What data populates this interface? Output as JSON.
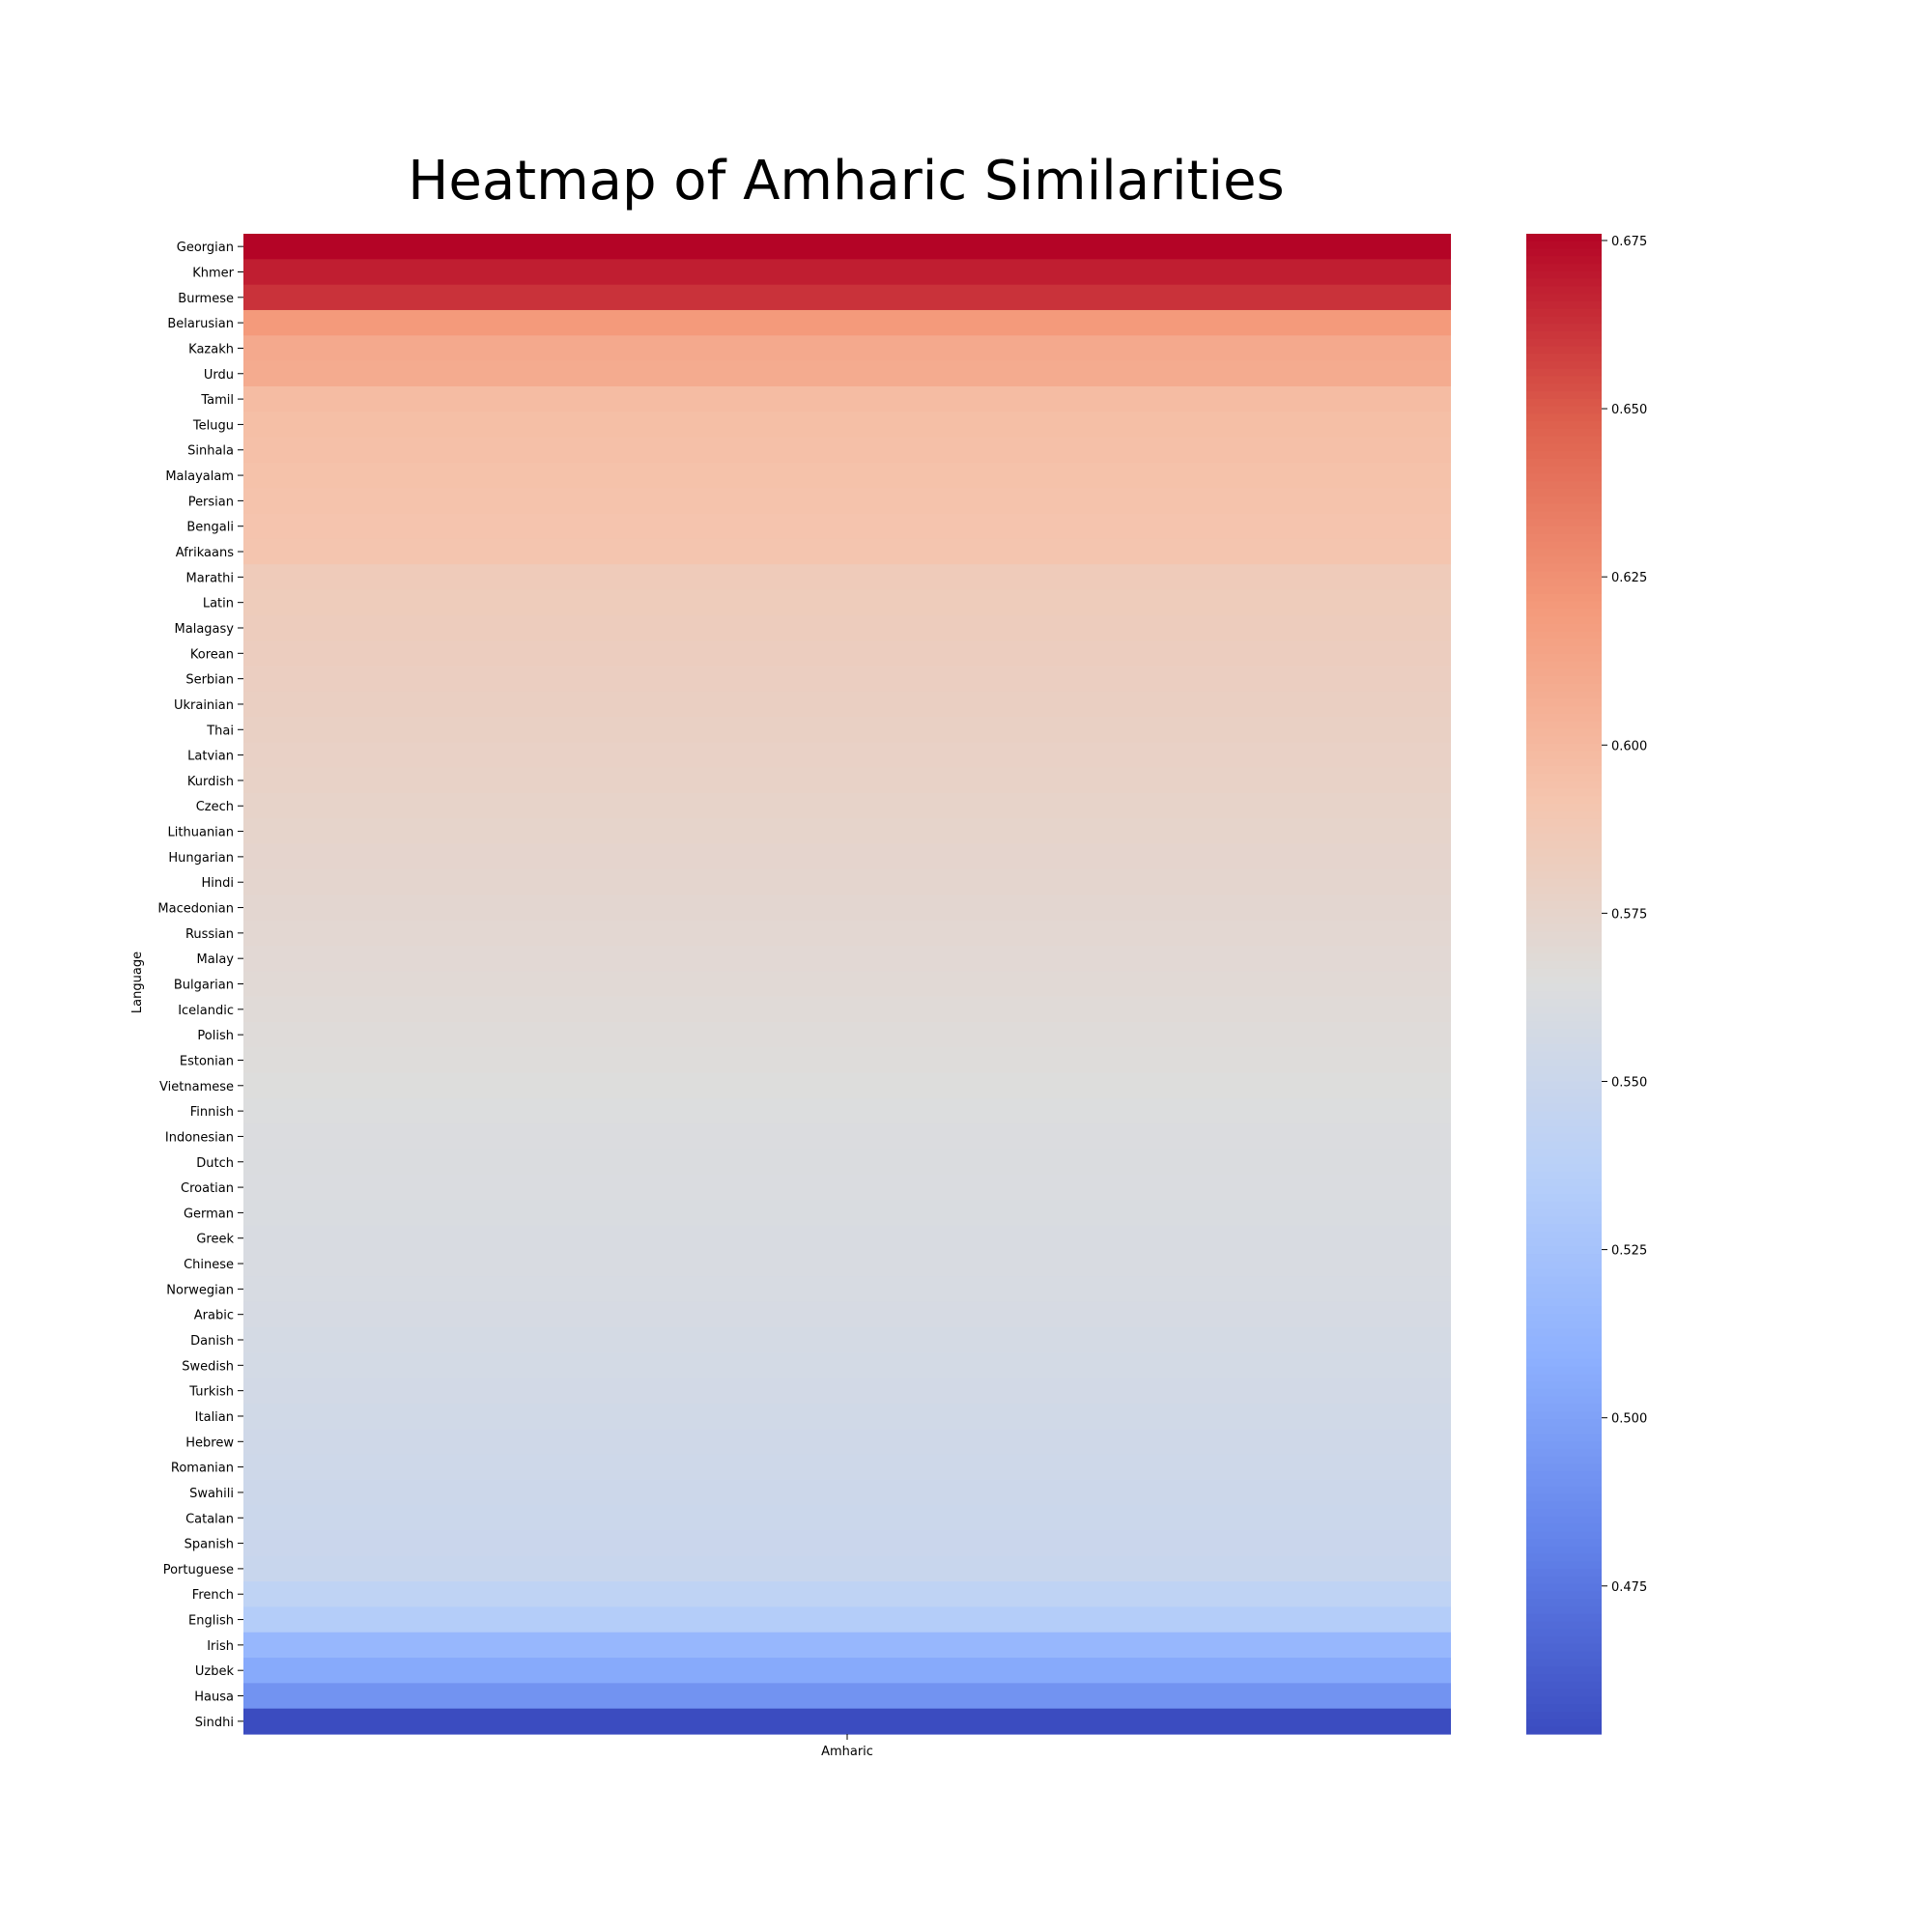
{
  "chart_data": {
    "type": "heatmap",
    "title": "Heatmap of Amharic Similarities",
    "xlabel": "",
    "ylabel": "Language",
    "columns": [
      "Amharic"
    ],
    "rows": [
      "Georgian",
      "Khmer",
      "Burmese",
      "Belarusian",
      "Kazakh",
      "Urdu",
      "Tamil",
      "Telugu",
      "Sinhala",
      "Malayalam",
      "Persian",
      "Bengali",
      "Afrikaans",
      "Marathi",
      "Latin",
      "Malagasy",
      "Korean",
      "Serbian",
      "Ukrainian",
      "Thai",
      "Latvian",
      "Kurdish",
      "Czech",
      "Lithuanian",
      "Hungarian",
      "Hindi",
      "Macedonian",
      "Russian",
      "Malay",
      "Bulgarian",
      "Icelandic",
      "Polish",
      "Estonian",
      "Vietnamese",
      "Finnish",
      "Indonesian",
      "Dutch",
      "Croatian",
      "German",
      "Greek",
      "Chinese",
      "Norwegian",
      "Arabic",
      "Danish",
      "Swedish",
      "Turkish",
      "Italian",
      "Hebrew",
      "Romanian",
      "Swahili",
      "Catalan",
      "Spanish",
      "Portuguese",
      "French",
      "English",
      "Irish",
      "Uzbek",
      "Hausa",
      "Sindhi"
    ],
    "values": [
      0.676,
      0.668,
      0.662,
      0.62,
      0.61,
      0.609,
      0.598,
      0.596,
      0.595,
      0.594,
      0.593,
      0.592,
      0.591,
      0.585,
      0.584,
      0.583,
      0.582,
      0.581,
      0.58,
      0.579,
      0.578,
      0.577,
      0.576,
      0.575,
      0.574,
      0.573,
      0.572,
      0.571,
      0.57,
      0.569,
      0.568,
      0.567,
      0.566,
      0.565,
      0.564,
      0.563,
      0.5625,
      0.562,
      0.5615,
      0.561,
      0.5605,
      0.56,
      0.559,
      0.558,
      0.557,
      0.556,
      0.555,
      0.554,
      0.553,
      0.552,
      0.551,
      0.55,
      0.549,
      0.542,
      0.534,
      0.515,
      0.505,
      0.491,
      0.453
    ],
    "colorbar": {
      "colormap": "coolwarm",
      "vmin": 0.453,
      "vmax": 0.676,
      "ticks": [
        "0.675",
        "0.650",
        "0.625",
        "0.600",
        "0.575",
        "0.550",
        "0.525",
        "0.500",
        "0.475"
      ]
    }
  }
}
